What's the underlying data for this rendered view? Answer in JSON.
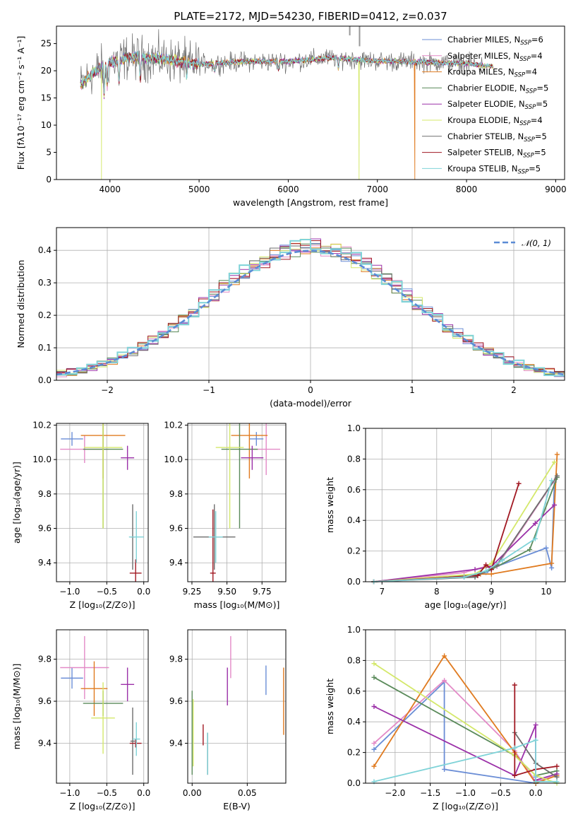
{
  "colors": [
    "#6b8ed6",
    "#e38ac7",
    "#e07b20",
    "#5a8a5a",
    "#9b30a8",
    "#d4e86a",
    "#6e6e6e",
    "#a11822",
    "#7fd3d8"
  ],
  "chart_data": [
    {
      "id": "spectrum",
      "type": "line",
      "title": "PLATE=2172, MJD=54230, FIBERID=0412, z=0.037",
      "xlabel": "wavelength [Angstrom, rest frame]",
      "ylabel": "Flux [fλ10⁻¹⁷ erg cm⁻² s⁻¹ A⁻¹]",
      "xlim": [
        3400,
        9100
      ],
      "ylim": [
        0,
        28.2
      ],
      "xticks": [
        4000,
        5000,
        6000,
        7000,
        8000,
        9000
      ],
      "yticks": [
        0,
        5,
        10,
        15,
        20,
        25
      ],
      "legend_position": "top-right",
      "series": [
        {
          "name": "Chabrier MILES, N_SSP=6"
        },
        {
          "name": "Salpeter MILES, N_SSP=4"
        },
        {
          "name": "Kroupa MILES, N_SSP=4"
        },
        {
          "name": "Chabrier ELODIE, N_SSP=5"
        },
        {
          "name": "Salpeter ELODIE, N_SSP=5"
        },
        {
          "name": "Kroupa ELODIE, N_SSP=4"
        },
        {
          "name": "Chabrier STELIB, N_SSP=5"
        },
        {
          "name": "Salpeter STELIB, N_SSP=5"
        },
        {
          "name": "Kroupa STELIB, N_SSP=5"
        }
      ],
      "continuum": {
        "x": [
          3650,
          3800,
          4000,
          4200,
          4500,
          5000,
          5500,
          6000,
          6500,
          7000,
          7500,
          8000,
          8300
        ],
        "y": [
          17,
          19.5,
          21.5,
          22.5,
          22.3,
          21.2,
          21.7,
          21.7,
          22.4,
          21.8,
          21.6,
          21.3,
          20.8
        ]
      },
      "sharp_drops": [
        {
          "series": 5,
          "x": 3905,
          "to": 0
        },
        {
          "series": 5,
          "x": 6795,
          "to": 0
        },
        {
          "series": 2,
          "x": 7420,
          "to": 0
        }
      ]
    },
    {
      "id": "residuals",
      "type": "area",
      "xlabel": "(data-model)/error",
      "ylabel": "Normed distribution",
      "xlim": [
        -2.5,
        2.5
      ],
      "ylim": [
        0,
        0.47
      ],
      "xticks": [
        -2,
        -1,
        0,
        1,
        2
      ],
      "yticks": [
        0.0,
        0.1,
        0.2,
        0.3,
        0.4
      ],
      "legend": [
        "𝒩(0, 1)"
      ],
      "legend_position": "top-right",
      "bin_width": 0.1
    },
    {
      "id": "age_vs_Z",
      "type": "scatter",
      "xlabel": "Z [log₁₀(Z/Z⊙)]",
      "ylabel": "age  [log₁₀(age/yr)]",
      "xlim": [
        -1.18,
        0.06
      ],
      "ylim": [
        9.29,
        10.21
      ],
      "xticks": [
        -1.0,
        -0.5,
        0.0
      ],
      "yticks": [
        9.4,
        9.6,
        9.8,
        10.0,
        10.2
      ],
      "points": [
        {
          "s": 0,
          "x": -0.97,
          "y": 10.12,
          "xe": 0.15,
          "ye": 0.04
        },
        {
          "s": 1,
          "x": -0.8,
          "y": 10.06,
          "xe": 0.33,
          "ye": 0.08
        },
        {
          "s": 2,
          "x": -0.55,
          "y": 10.14,
          "xe": 0.3,
          "ye": 0.25
        },
        {
          "s": 3,
          "x": -0.55,
          "y": 10.06,
          "xe": 0.27,
          "ye": 0.46
        },
        {
          "s": 4,
          "x": -0.22,
          "y": 10.01,
          "xe": 0.09,
          "ye": 0.07
        },
        {
          "s": 5,
          "x": -0.55,
          "y": 10.07,
          "xe": 0.26,
          "ye": 0.47
        },
        {
          "s": 6,
          "x": -0.15,
          "y": 9.55,
          "xe": 0.03,
          "ye": 0.19
        },
        {
          "s": 7,
          "x": -0.11,
          "y": 9.34,
          "xe": 0.08,
          "ye": 0.08
        },
        {
          "s": 8,
          "x": -0.1,
          "y": 9.55,
          "xe": 0.1,
          "ye": 0.15
        }
      ]
    },
    {
      "id": "age_vs_mass",
      "type": "scatter",
      "xlabel": "mass [log₁₀(M/M⊙)]",
      "ylabel": "",
      "xlim": [
        9.22,
        9.92
      ],
      "ylim": [
        9.29,
        10.21
      ],
      "xticks": [
        9.25,
        9.5,
        9.75
      ],
      "yticks": [
        9.4,
        9.6,
        9.8,
        10.0,
        10.2
      ],
      "points": [
        {
          "s": 0,
          "x": 9.71,
          "y": 10.12,
          "xe": 0.05,
          "ye": 0.04
        },
        {
          "s": 1,
          "x": 9.78,
          "y": 10.06,
          "xe": 0.1,
          "ye": 0.15
        },
        {
          "s": 2,
          "x": 9.66,
          "y": 10.14,
          "xe": 0.13,
          "ye": 0.25
        },
        {
          "s": 3,
          "x": 9.59,
          "y": 10.06,
          "xe": 0.13,
          "ye": 0.46
        },
        {
          "s": 4,
          "x": 9.68,
          "y": 10.01,
          "xe": 0.08,
          "ye": 0.07
        },
        {
          "s": 5,
          "x": 9.52,
          "y": 10.07,
          "xe": 0.1,
          "ye": 0.47
        },
        {
          "s": 6,
          "x": 9.41,
          "y": 9.55,
          "xe": 0.15,
          "ye": 0.19
        },
        {
          "s": 7,
          "x": 9.4,
          "y": 9.34,
          "xe": 0.02,
          "ye": 0.37
        },
        {
          "s": 8,
          "x": 9.42,
          "y": 9.55,
          "xe": 0.05,
          "ye": 0.15
        }
      ]
    },
    {
      "id": "weight_vs_age",
      "type": "line",
      "xlabel": "age  [log₁₀(age/yr)]",
      "ylabel": "mass weight",
      "xlim": [
        6.7,
        10.35
      ],
      "ylim": [
        0,
        1.0
      ],
      "xticks": [
        7,
        8,
        9,
        10
      ],
      "yticks": [
        0.0,
        0.2,
        0.4,
        0.6,
        0.8,
        1.0
      ],
      "series": [
        {
          "s": 0,
          "x": [
            6.85,
            8.5,
            8.9,
            9.1,
            10.0,
            10.1,
            10.15
          ],
          "y": [
            0.0,
            0.03,
            0.06,
            0.1,
            0.22,
            0.09,
            0.65
          ]
        },
        {
          "s": 1,
          "x": [
            6.85,
            8.5,
            8.9,
            9.1,
            10.15
          ],
          "y": [
            0.0,
            0.06,
            0.1,
            0.1,
            0.66
          ]
        },
        {
          "s": 2,
          "x": [
            6.85,
            8.8,
            9.0,
            10.1,
            10.2
          ],
          "y": [
            0.0,
            0.05,
            0.05,
            0.12,
            0.83
          ]
        },
        {
          "s": 3,
          "x": [
            6.85,
            8.7,
            9.0,
            9.7,
            10.2
          ],
          "y": [
            0.0,
            0.04,
            0.08,
            0.21,
            0.68
          ]
        },
        {
          "s": 4,
          "x": [
            6.85,
            8.7,
            9.0,
            9.8,
            10.15
          ],
          "y": [
            0.0,
            0.08,
            0.1,
            0.38,
            0.5
          ]
        },
        {
          "s": 5,
          "x": [
            6.85,
            8.7,
            9.0,
            10.15
          ],
          "y": [
            0.0,
            0.05,
            0.12,
            0.78
          ]
        },
        {
          "s": 6,
          "x": [
            6.85,
            8.7,
            9.1,
            10.2
          ],
          "y": [
            0.0,
            0.03,
            0.11,
            0.69
          ]
        },
        {
          "s": 7,
          "x": [
            6.85,
            8.75,
            8.9,
            9.0,
            9.5
          ],
          "y": [
            0.0,
            0.04,
            0.11,
            0.08,
            0.64
          ]
        },
        {
          "s": 8,
          "x": [
            6.85,
            8.5,
            8.9,
            9.2,
            9.8,
            10.1
          ],
          "y": [
            0.0,
            0.03,
            0.07,
            0.14,
            0.28,
            0.66
          ]
        }
      ]
    },
    {
      "id": "mass_vs_Z",
      "type": "scatter",
      "xlabel": "Z [log₁₀(Z/Z⊙)]",
      "ylabel": "mass [log₁₀(M/M⊙)]",
      "xlim": [
        -1.18,
        0.06
      ],
      "ylim": [
        9.21,
        9.94
      ],
      "xticks": [
        -1.0,
        -0.5,
        0.0
      ],
      "yticks": [
        9.4,
        9.6,
        9.8
      ],
      "points": [
        {
          "s": 0,
          "x": -0.97,
          "y": 9.71,
          "xe": 0.15,
          "ye": 0.05
        },
        {
          "s": 1,
          "x": -0.8,
          "y": 9.76,
          "xe": 0.33,
          "ye": 0.15
        },
        {
          "s": 2,
          "x": -0.67,
          "y": 9.66,
          "xe": 0.18,
          "ye": 0.13
        },
        {
          "s": 3,
          "x": -0.55,
          "y": 9.59,
          "xe": 0.27,
          "ye": 0.06
        },
        {
          "s": 4,
          "x": -0.22,
          "y": 9.68,
          "xe": 0.09,
          "ye": 0.08
        },
        {
          "s": 5,
          "x": -0.55,
          "y": 9.52,
          "xe": 0.16,
          "ye": 0.17
        },
        {
          "s": 6,
          "x": -0.15,
          "y": 9.41,
          "xe": 0.03,
          "ye": 0.16
        },
        {
          "s": 7,
          "x": -0.11,
          "y": 9.4,
          "xe": 0.08,
          "ye": 0.02
        },
        {
          "s": 8,
          "x": -0.1,
          "y": 9.42,
          "xe": 0.05,
          "ye": 0.08
        }
      ]
    },
    {
      "id": "mass_vs_ebv",
      "type": "scatter",
      "xlabel": "E(B-V)",
      "ylabel": "",
      "xlim": [
        -0.004,
        0.085
      ],
      "ylim": [
        9.21,
        9.94
      ],
      "xticks": [
        0.0,
        0.05
      ],
      "yticks": [
        9.4,
        9.6,
        9.8
      ],
      "points": [
        {
          "s": 0,
          "x": 0.067,
          "y": 9.7,
          "ye": 0.07
        },
        {
          "s": 1,
          "x": 0.035,
          "y": 9.81,
          "ye": 0.1
        },
        {
          "s": 2,
          "x": 0.083,
          "y": 9.6,
          "ye": 0.16
        },
        {
          "s": 3,
          "x": 0.0,
          "y": 9.45,
          "ye": 0.2
        },
        {
          "s": 4,
          "x": 0.032,
          "y": 9.67,
          "ye": 0.09
        },
        {
          "s": 5,
          "x": 0.001,
          "y": 9.45,
          "ye": 0.16
        },
        {
          "s": 6,
          "x": 0.014,
          "y": 9.35,
          "ye": 0.1
        },
        {
          "s": 7,
          "x": 0.01,
          "y": 9.44,
          "ye": 0.05
        },
        {
          "s": 8,
          "x": 0.014,
          "y": 9.35,
          "ye": 0.1
        }
      ]
    },
    {
      "id": "weight_vs_Z",
      "type": "line",
      "xlabel": "Z [log₁₀(Z/Z⊙)]",
      "ylabel": "mass weight",
      "xlim": [
        -2.42,
        0.42
      ],
      "ylim": [
        0,
        1.0
      ],
      "xticks": [
        -2.0,
        -1.5,
        -1.0,
        -0.5,
        0.0
      ],
      "yticks": [
        0.0,
        0.2,
        0.4,
        0.6,
        0.8,
        1.0
      ],
      "series": [
        {
          "s": 0,
          "x": [
            -2.3,
            -1.3,
            -1.3,
            0.0,
            0.0
          ],
          "y": [
            0.22,
            0.66,
            0.09,
            0.0,
            0.04
          ]
        },
        {
          "s": 1,
          "x": [
            -2.3,
            -1.3,
            -0.3,
            0.0,
            0.3
          ],
          "y": [
            0.26,
            0.67,
            0.21,
            0.01,
            0.05
          ]
        },
        {
          "s": 2,
          "x": [
            -2.3,
            -1.3,
            -0.3,
            0.0,
            0.3
          ],
          "y": [
            0.11,
            0.83,
            0.2,
            0.0,
            0.05
          ]
        },
        {
          "s": 3,
          "x": [
            -2.3,
            -0.3,
            0.0,
            0.3
          ],
          "y": [
            0.69,
            0.18,
            0.05,
            0.08
          ]
        },
        {
          "s": 4,
          "x": [
            -2.3,
            -0.3,
            0.0,
            0.0,
            0.3
          ],
          "y": [
            0.5,
            0.05,
            0.38,
            0.02,
            0.06
          ]
        },
        {
          "s": 5,
          "x": [
            -2.3,
            -0.3,
            0.0,
            0.3
          ],
          "y": [
            0.78,
            0.18,
            0.05,
            0.0
          ]
        },
        {
          "s": 6,
          "x": [
            -0.3,
            0.0,
            0.3
          ],
          "y": [
            0.33,
            0.13,
            0.04
          ]
        },
        {
          "s": 7,
          "x": [
            -0.3,
            -0.3,
            0.0,
            0.3
          ],
          "y": [
            0.64,
            0.05,
            0.09,
            0.11
          ]
        },
        {
          "s": 8,
          "x": [
            -2.3,
            -0.3,
            0.0,
            0.0,
            0.3
          ],
          "y": [
            0.01,
            0.23,
            0.28,
            0.01,
            0.01
          ]
        }
      ]
    }
  ]
}
